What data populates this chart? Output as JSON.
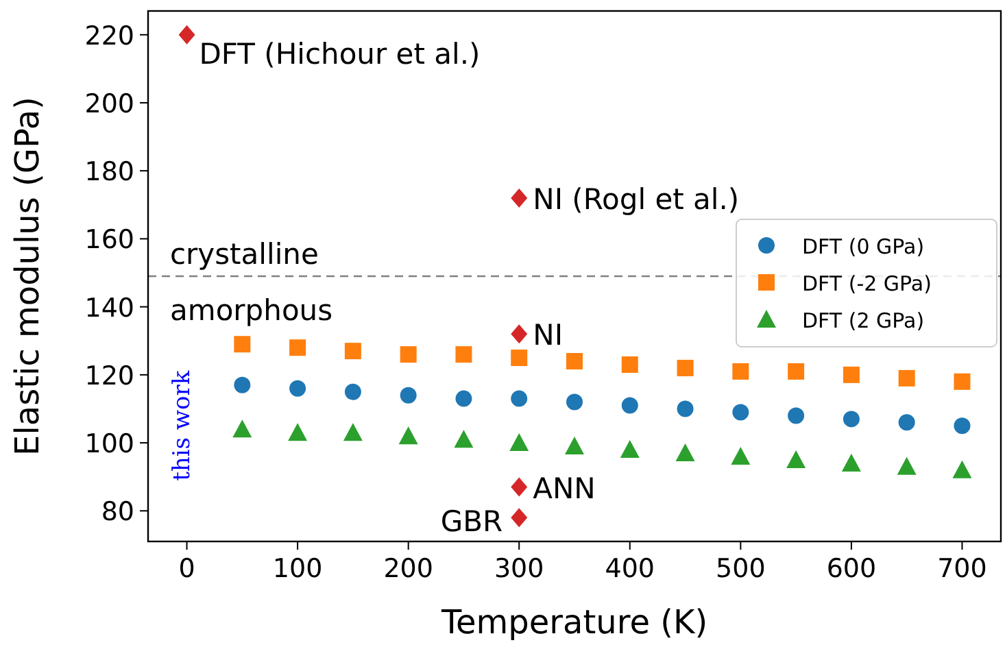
{
  "chart_data": {
    "type": "scatter",
    "xlabel": "Temperature (K)",
    "ylabel": "Elastic modulus (GPa)",
    "xlim": [
      -35,
      735
    ],
    "ylim": [
      71,
      227
    ],
    "xticks": [
      0,
      100,
      200,
      300,
      400,
      500,
      600,
      700
    ],
    "yticks": [
      80,
      100,
      120,
      140,
      160,
      180,
      200,
      220
    ],
    "grid": false,
    "legend": "right",
    "series": [
      {
        "name": "DFT (0 GPa)",
        "color": "#1f77b4",
        "marker": "circle",
        "x": [
          50,
          100,
          150,
          200,
          250,
          300,
          350,
          400,
          450,
          500,
          550,
          600,
          650,
          700
        ],
        "values": [
          117,
          116,
          115,
          114,
          113,
          113,
          112,
          111,
          110,
          109,
          108,
          107,
          106,
          105
        ]
      },
      {
        "name": "DFT (-2 GPa)",
        "color": "#ff7f0e",
        "marker": "square",
        "x": [
          50,
          100,
          150,
          200,
          250,
          300,
          350,
          400,
          450,
          500,
          550,
          600,
          650,
          700
        ],
        "values": [
          129,
          128,
          127,
          126,
          126,
          125,
          124,
          123,
          122,
          121,
          121,
          120,
          119,
          118
        ]
      },
      {
        "name": "DFT (2 GPa)",
        "color": "#2ca02c",
        "marker": "triangle",
        "x": [
          50,
          100,
          150,
          200,
          250,
          300,
          350,
          400,
          450,
          500,
          550,
          600,
          650,
          700
        ],
        "values": [
          104,
          103,
          103,
          102,
          101,
          100,
          99,
          98,
          97,
          96,
          95,
          94,
          93,
          92
        ]
      },
      {
        "color": "#d62728",
        "marker": "diamond",
        "x": [
          0,
          300,
          300,
          300,
          300
        ],
        "values": [
          220,
          172,
          132,
          87,
          78
        ]
      }
    ],
    "ref_lines": [
      {
        "axis": "y",
        "value": 149,
        "color": "#808080",
        "line_style": "dashed"
      }
    ],
    "annotations": [
      "DFT (Hichour et al.)",
      "NI (Rogl et al.)",
      "NI",
      "ANN",
      "GBR",
      "crystalline",
      "amorphous",
      "this work"
    ]
  }
}
